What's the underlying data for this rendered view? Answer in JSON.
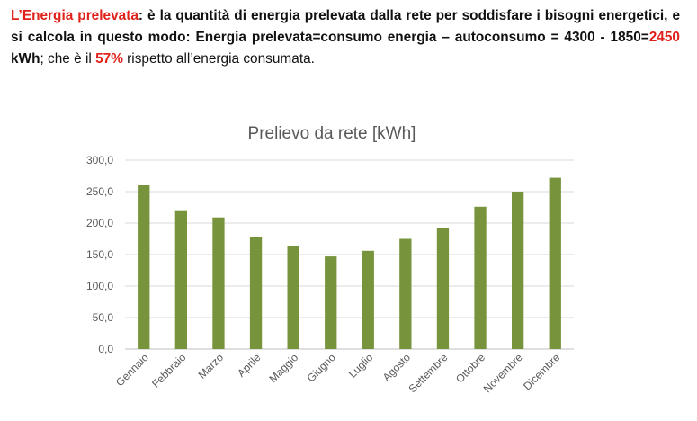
{
  "paragraph": {
    "term": "L’Energia prelevata",
    "part1": ": è la quantità di energia prelevata dalla rete per soddisfare i bisogni energetici, e si calcola in questo modo: Energia prelevata=consumo energia – autoconsumo = 4300 - 1850=",
    "value": "2450",
    "unit": " kWh",
    "part2": "; che è il ",
    "percent": "57%",
    "part3": " rispetto all’energia consumata."
  },
  "colors": {
    "bar": "#77933c",
    "highlight": "#e0201a",
    "grid": "#d9d9d9",
    "axis_text": "#595959"
  },
  "chart_data": {
    "type": "bar",
    "title": "Prelievo da rete [kWh]",
    "xlabel": "",
    "ylabel": "",
    "categories": [
      "Gennaio",
      "Febbraio",
      "Marzo",
      "Aprile",
      "Maggio",
      "Giugno",
      "Luglio",
      "Agosto",
      "Settembre",
      "Ottobre",
      "Novembre",
      "Dicembre"
    ],
    "values": [
      260,
      219,
      209,
      178,
      164,
      147,
      156,
      175,
      192,
      226,
      250,
      272
    ],
    "ylim": [
      0,
      300
    ],
    "yticks": [
      "0,0",
      "50,0",
      "100,0",
      "150,0",
      "200,0",
      "250,0",
      "300,0"
    ],
    "grid": true,
    "legend": "none"
  }
}
